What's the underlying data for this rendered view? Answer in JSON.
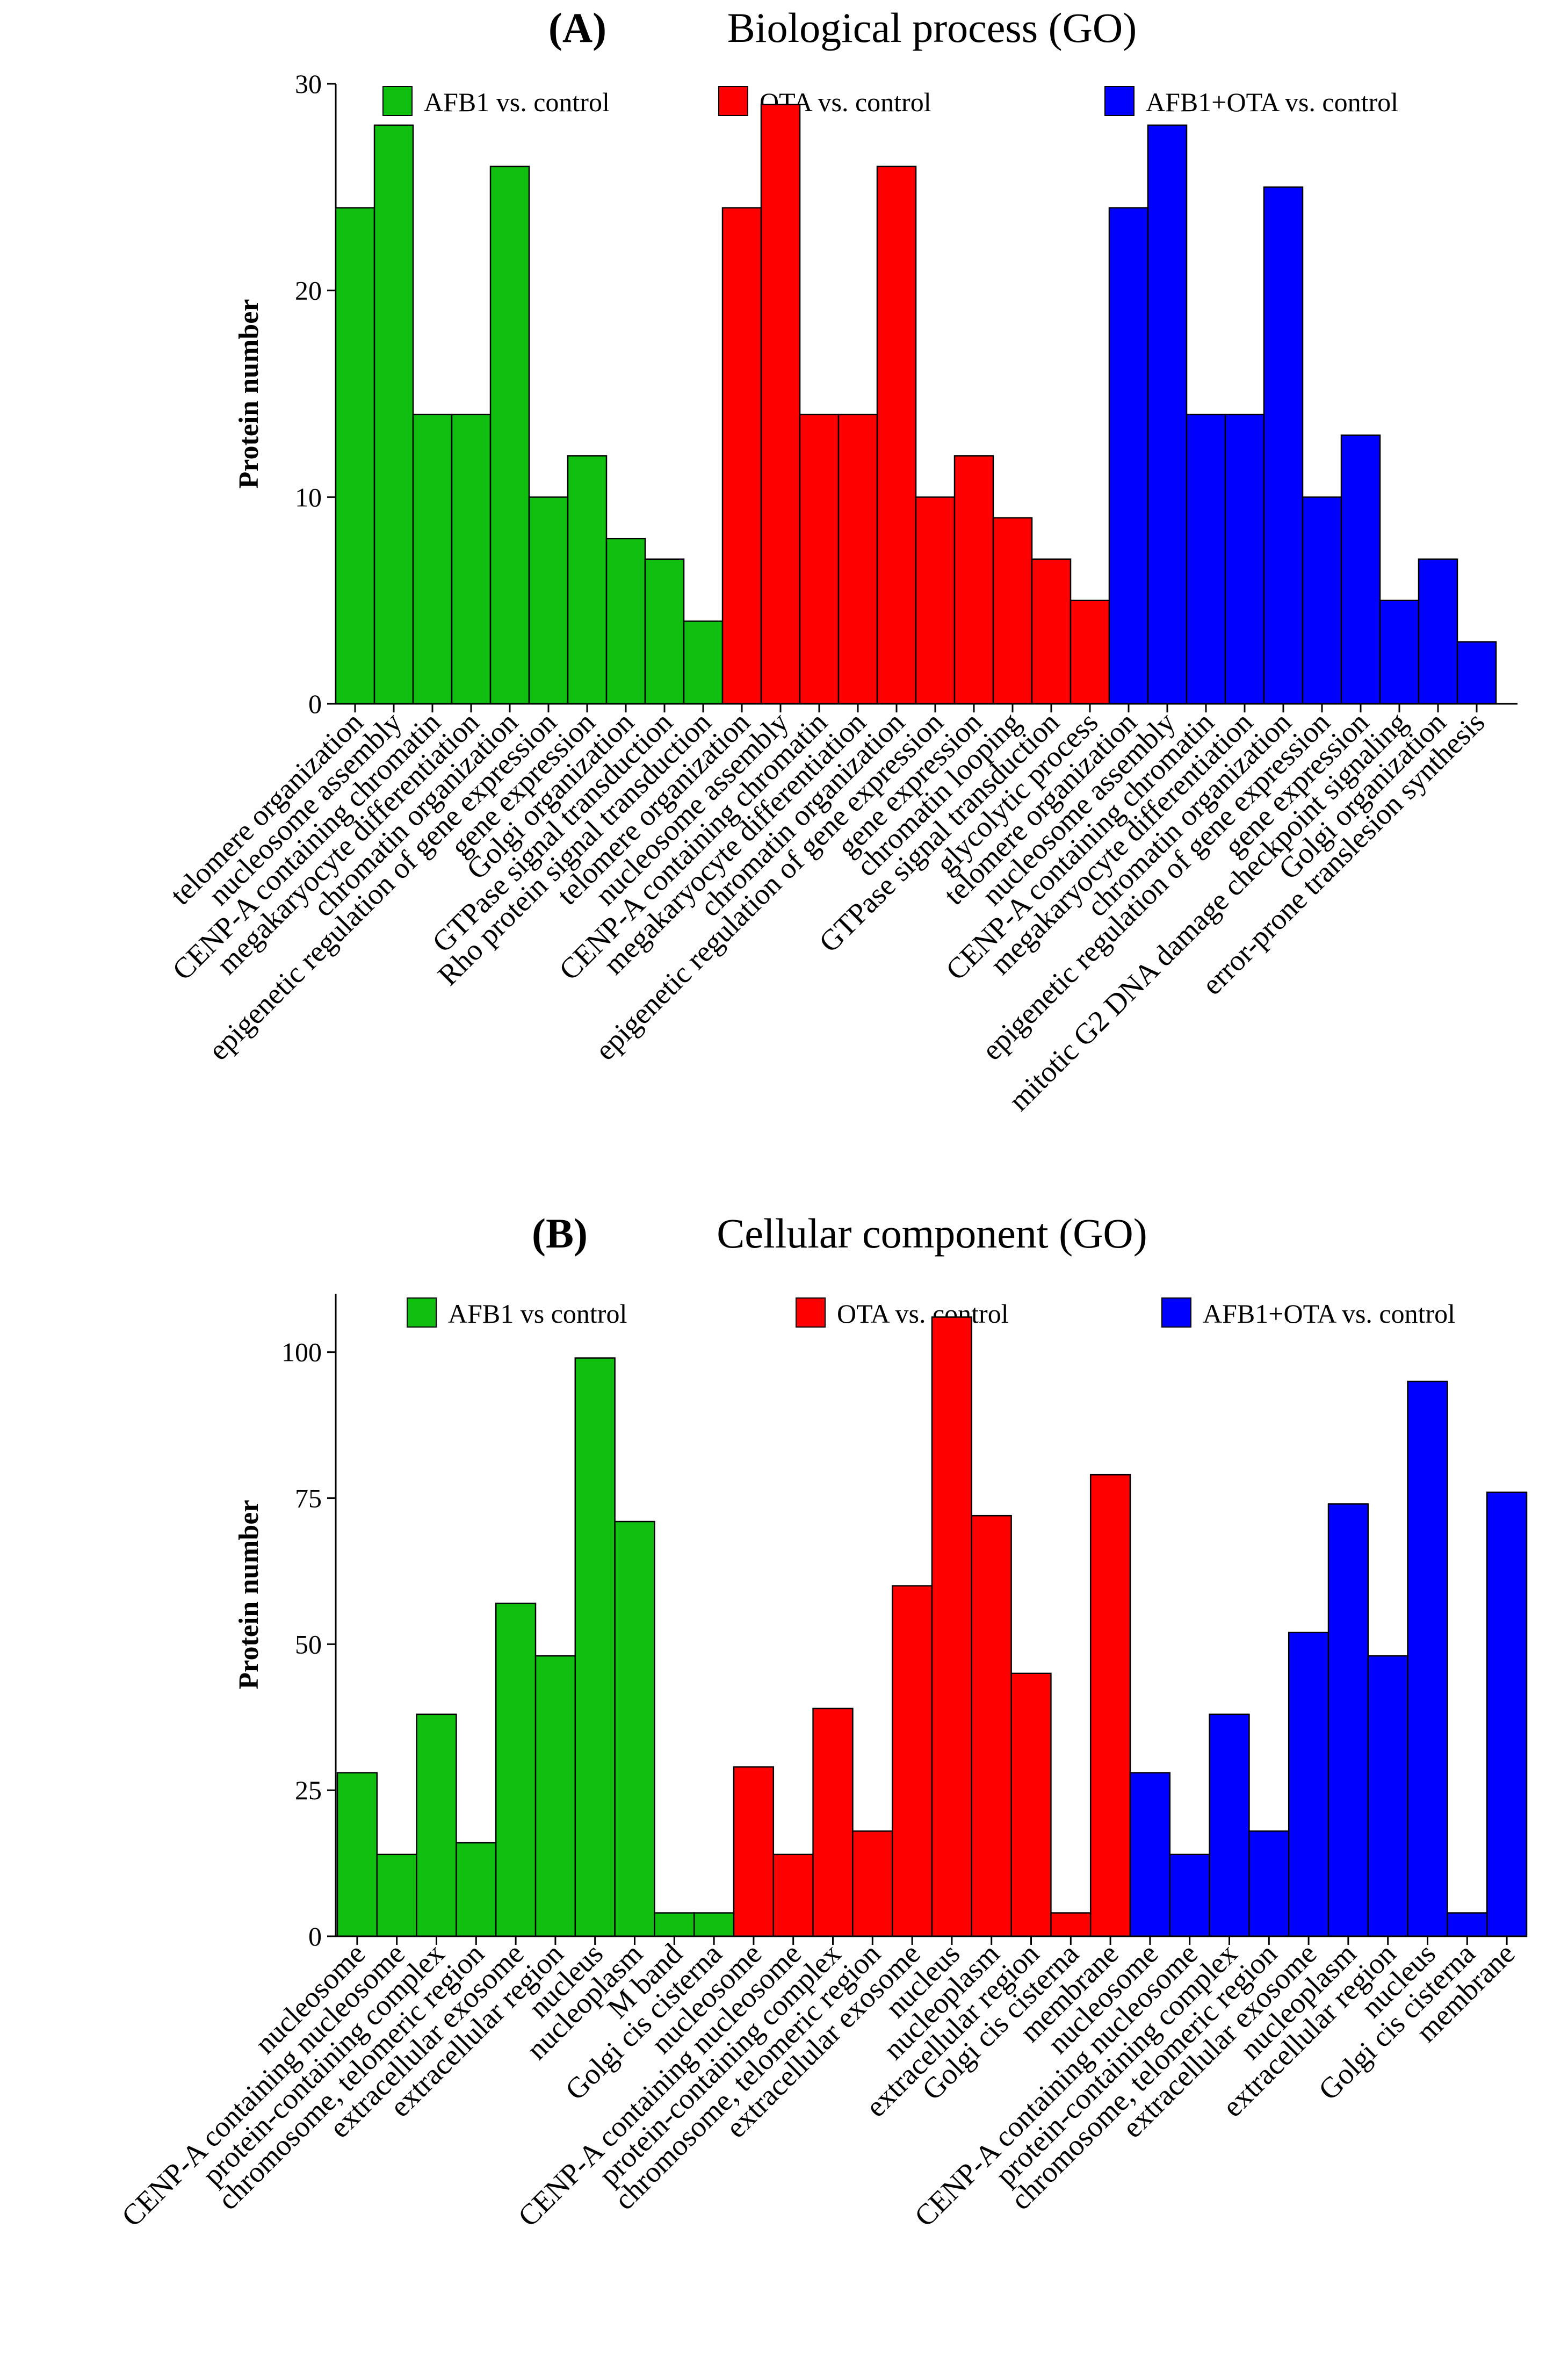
{
  "colors": {
    "afb1": "#11bf11",
    "ota": "#ff0000",
    "combo": "#0000ff",
    "axis": "#000000"
  },
  "chart_data": [
    {
      "type": "bar",
      "panel_label": "(A)",
      "title": "Biological process (GO)",
      "ylabel": "Protein number",
      "xlabel": "",
      "ylim": [
        0,
        30
      ],
      "yticks": [
        0,
        10,
        20,
        30
      ],
      "legend_position": "top",
      "series": [
        {
          "name": "AFB1 vs. control",
          "color_key": "afb1",
          "categories": [
            "telomere organization",
            "nucleosome assembly",
            "CENP-A containing chromatin",
            "megakaryocyte differentiation",
            "chromatin organization",
            "epigenetic regulation of gene expression",
            "gene expression",
            "Golgi organization",
            "GTPase signal transduction",
            "Rho protein signal transduction"
          ],
          "values": [
            24,
            28,
            14,
            14,
            26,
            10,
            12,
            8,
            7,
            4
          ]
        },
        {
          "name": "OTA vs. control",
          "color_key": "ota",
          "categories": [
            "telomere organization",
            "nucleosome assembly",
            "CENP-A containing chromatin",
            "megakaryocyte differentiation",
            "chromatin organization",
            "epigenetic regulation of gene expression",
            "gene expression",
            "chromatin looping",
            "GTPase signal transduction",
            "glycolytic process"
          ],
          "values": [
            24,
            29,
            14,
            14,
            26,
            10,
            12,
            9,
            7,
            5
          ]
        },
        {
          "name": "AFB1+OTA vs. control",
          "color_key": "combo",
          "categories": [
            "telomere organization",
            "nucleosome assembly",
            "CENP-A containing chromatin",
            "megakaryocyte differentiation",
            "chromatin organization",
            "epigenetic regulation of gene expression",
            "gene expression",
            "mitotic G2 DNA damage checkpoint signaling",
            "Golgi organization",
            "error-prone translesion synthesis"
          ],
          "values": [
            24,
            28,
            14,
            14,
            25,
            10,
            13,
            5,
            7,
            3
          ]
        }
      ]
    },
    {
      "type": "bar",
      "panel_label": "(B)",
      "title": "Cellular component (GO)",
      "ylabel": "Protein number",
      "xlabel": "",
      "ylim": [
        0,
        110
      ],
      "yticks": [
        0,
        25,
        50,
        75,
        100
      ],
      "legend_position": "top",
      "series": [
        {
          "name": "AFB1 vs control",
          "color_key": "afb1",
          "categories": [
            "nucleosome",
            "CENP-A containing nucleosome",
            "protein-containing complex",
            "chromosome, telomeric region",
            "extracellular exosome",
            "extracellular region",
            "nucleus",
            "nucleoplasm",
            "M band",
            "Golgi cis cisterna"
          ],
          "values": [
            28,
            14,
            38,
            16,
            57,
            48,
            99,
            71,
            4,
            4
          ]
        },
        {
          "name": "OTA vs. control",
          "color_key": "ota",
          "categories": [
            "nucleosome",
            "CENP-A containing nucleosome",
            "protein-containing complex",
            "chromosome, telomeric region",
            "extracellular exosome",
            "nucleus",
            "nucleoplasm",
            "extracellular region",
            "Golgi cis cisterna",
            "membrane"
          ],
          "values": [
            29,
            14,
            39,
            18,
            60,
            106,
            72,
            45,
            4,
            79
          ]
        },
        {
          "name": "AFB1+OTA vs. control",
          "color_key": "combo",
          "categories": [
            "nucleosome",
            "CENP-A containing nucleosome",
            "protein-containing complex",
            "chromosome, telomeric region",
            "extracellular exosome",
            "nucleoplasm",
            "extracellular region",
            "nucleus",
            "Golgi cis cisterna",
            "membrane"
          ],
          "values": [
            28,
            14,
            38,
            18,
            52,
            74,
            48,
            95,
            4,
            76
          ]
        }
      ]
    }
  ]
}
